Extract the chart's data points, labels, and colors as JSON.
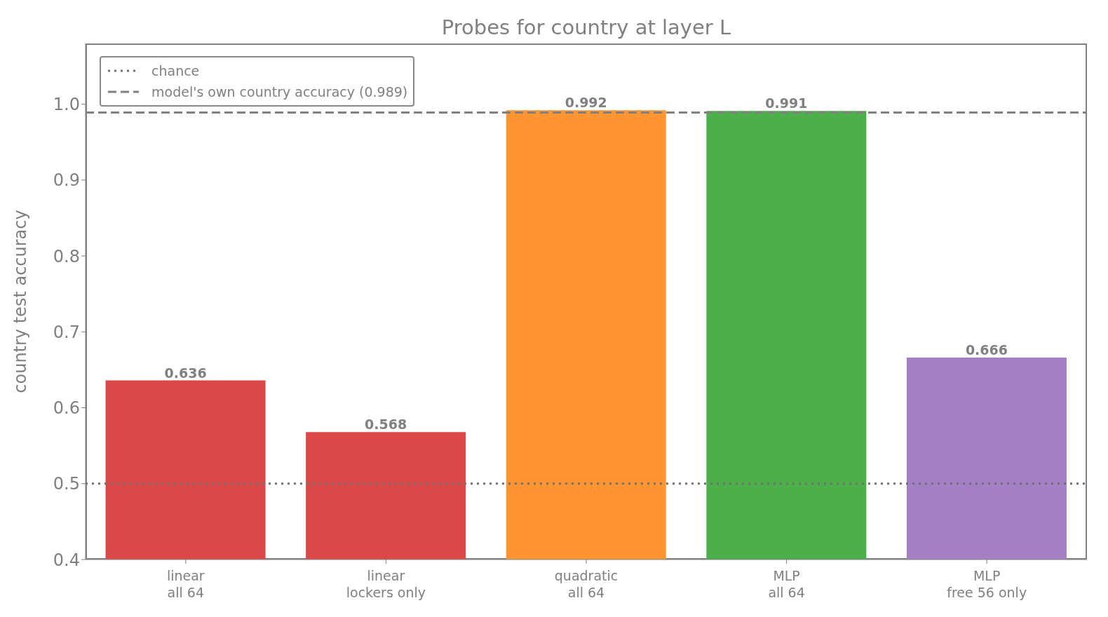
{
  "chart_data": {
    "type": "bar",
    "title": "Probes for country at layer L",
    "ylabel": "country test accuracy",
    "categories": [
      "linear\nall 64",
      "linear\nlockers only",
      "quadratic\nall 64",
      "MLP\nall 64",
      "MLP\nfree 56 only"
    ],
    "values": [
      0.636,
      0.568,
      0.992,
      0.991,
      0.666
    ],
    "colors": [
      "#db4848",
      "#db4848",
      "#ff9433",
      "#4caf4a",
      "#a47fc4"
    ],
    "ylim": [
      0.4,
      1.08
    ],
    "yticks": [
      0.4,
      0.5,
      0.6,
      0.7,
      0.8,
      0.9,
      {
        "value": 1,
        "label": "1.0"
      }
    ],
    "data_labels": true,
    "legend": "top left",
    "ref_lines": [
      {
        "axis": "y",
        "value": 0.5,
        "label": "chance",
        "color": "#707070",
        "line_style": "dotted"
      },
      {
        "axis": "y",
        "value": 0.989,
        "label": "model's own country accuracy (0.989)",
        "color": "#808080",
        "line_style": "dashed"
      }
    ]
  }
}
